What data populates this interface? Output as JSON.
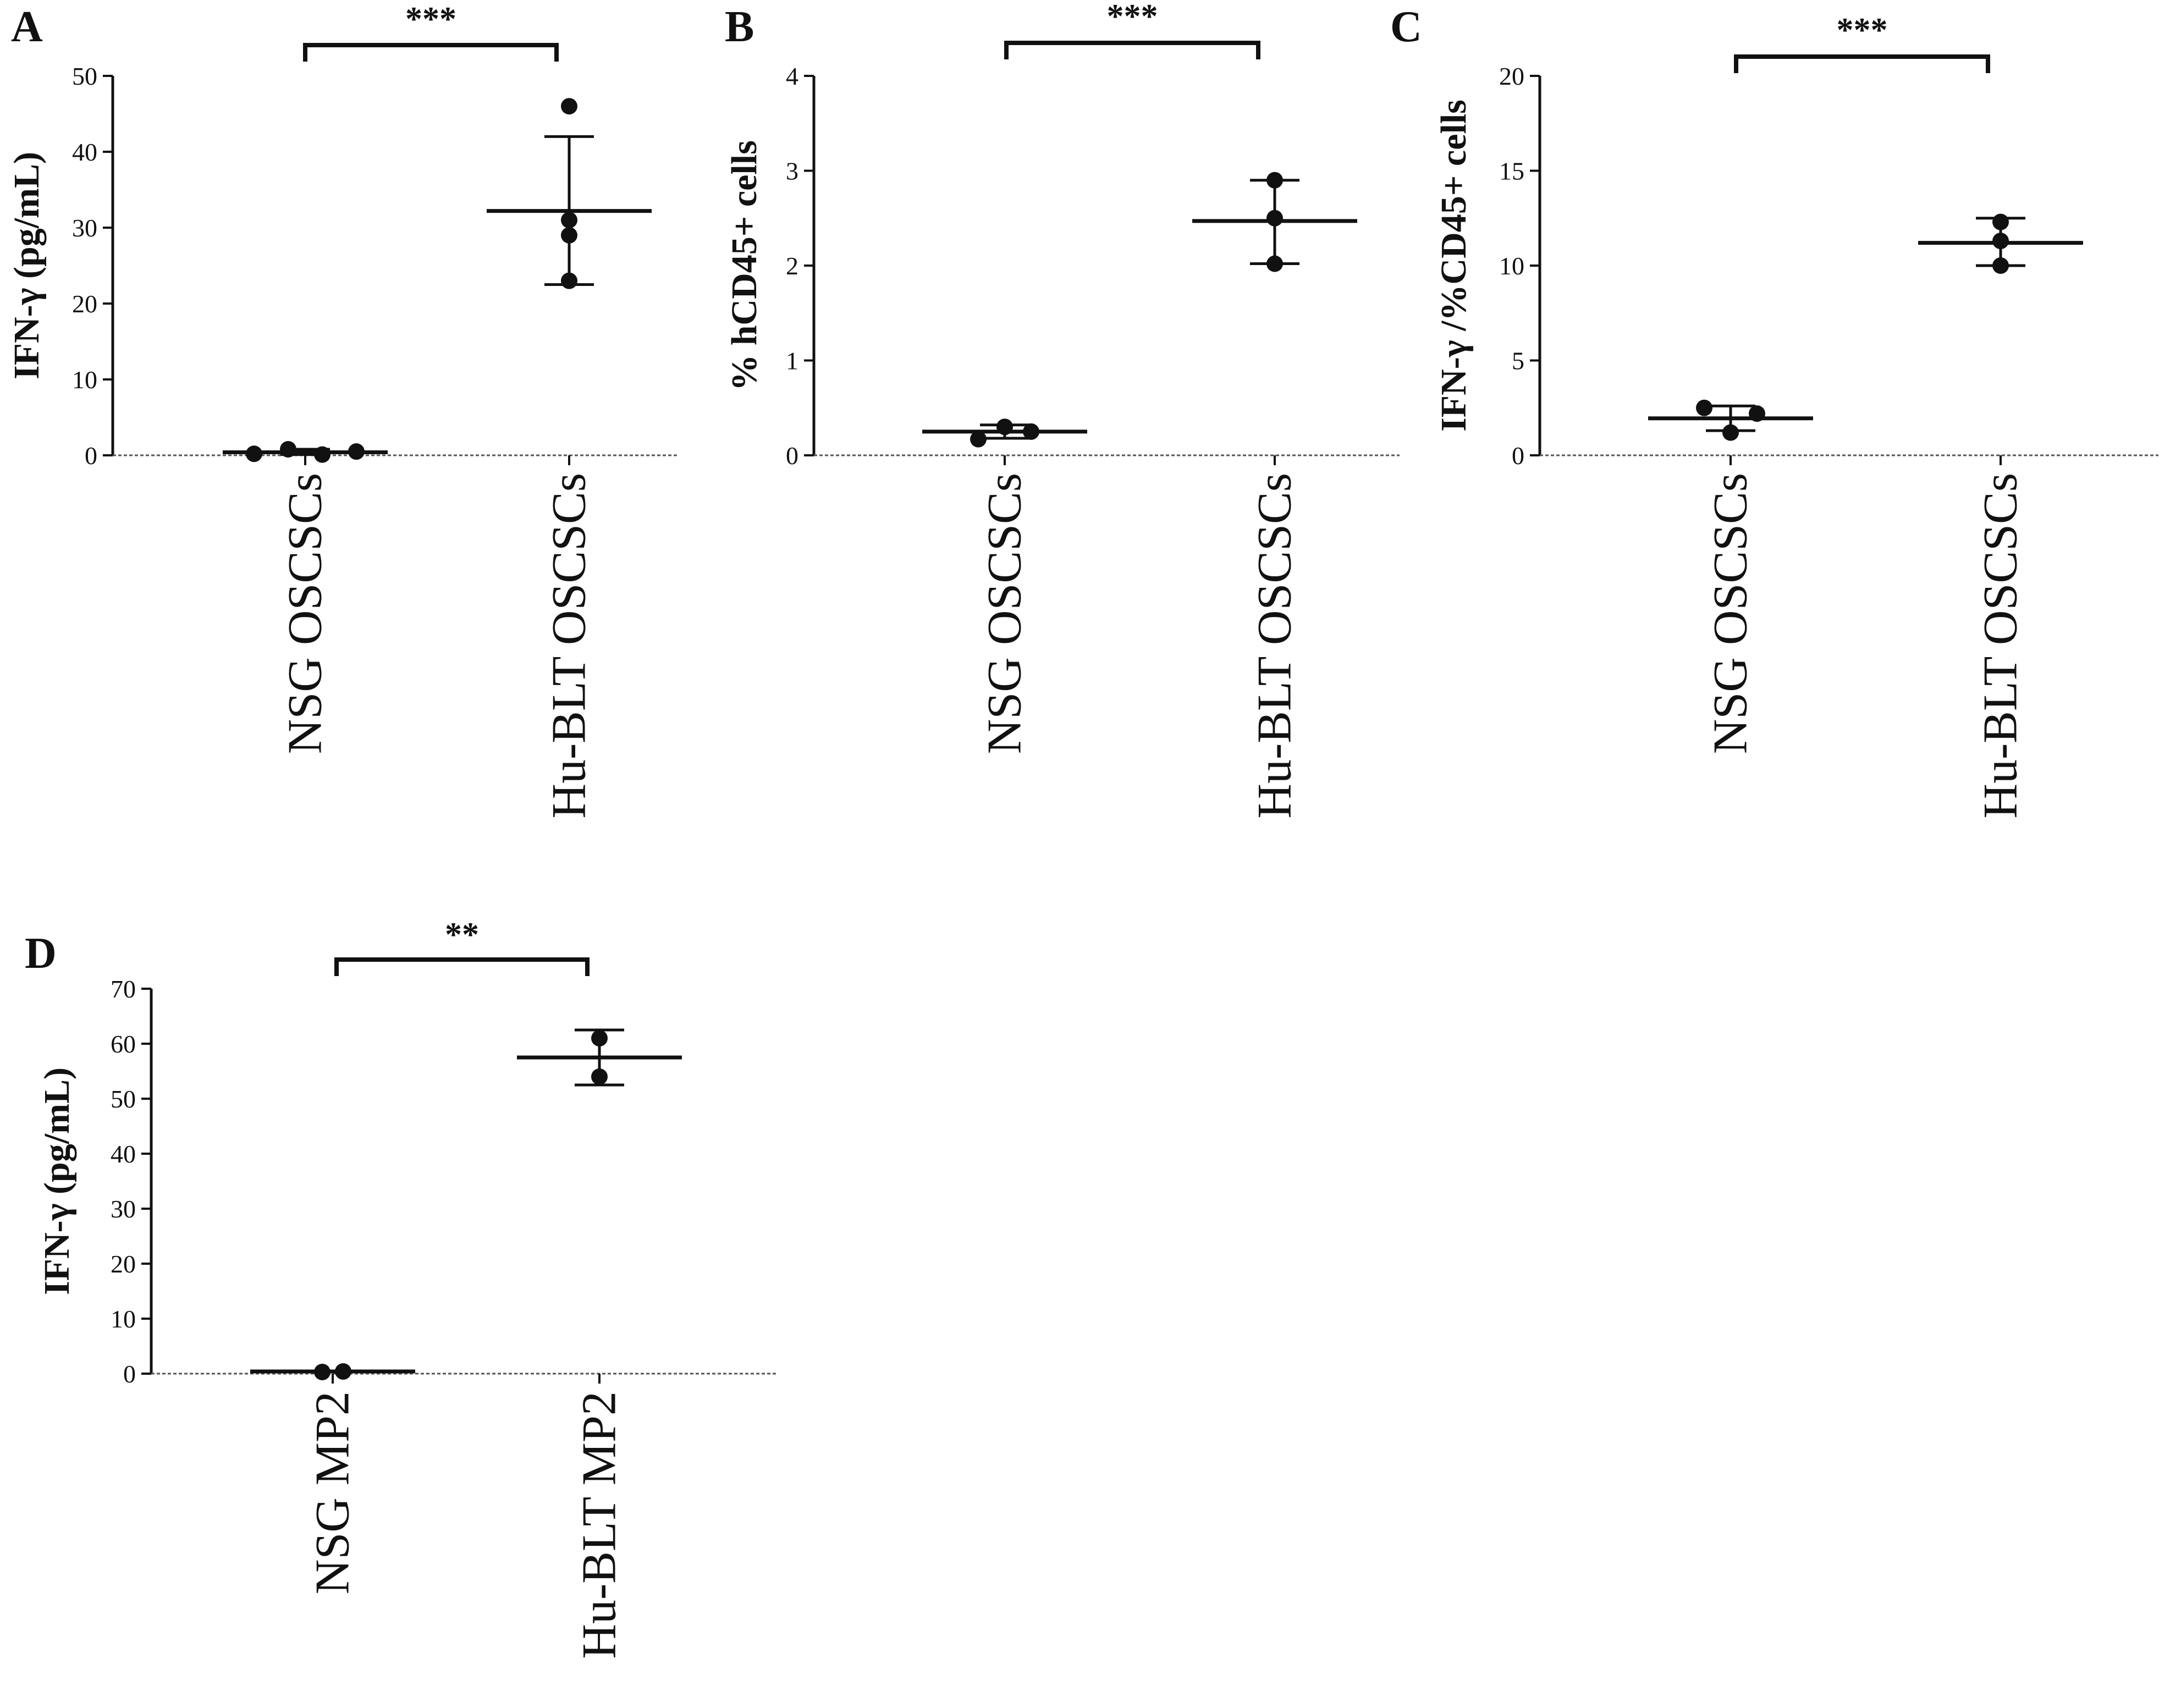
{
  "chart_data": [
    {
      "panel": "A",
      "type": "scatter",
      "ylabel": "IFN-γ (pg/mL)",
      "ylim": [
        0,
        50
      ],
      "yticks": [
        0,
        10,
        20,
        30,
        40,
        50
      ],
      "categories": [
        "NSG OSCSCs",
        "Hu-BLT OSCSCs"
      ],
      "groups": [
        {
          "points": [
            0.2,
            0.8,
            0.1,
            0.5
          ],
          "mean": 0.4,
          "err_low": 0.1,
          "err_high": 0.8
        },
        {
          "points": [
            46,
            31,
            29,
            23
          ],
          "mean": 32.2,
          "err_low": 22.5,
          "err_high": 42
        }
      ],
      "significance": "***"
    },
    {
      "panel": "B",
      "type": "scatter",
      "ylabel": "% hCD45+ cells",
      "ylim": [
        0,
        4
      ],
      "yticks": [
        0,
        1,
        2,
        3,
        4
      ],
      "categories": [
        "NSG OSCSCs",
        "Hu-BLT OSCSCs"
      ],
      "groups": [
        {
          "points": [
            0.17,
            0.3,
            0.25
          ],
          "mean": 0.25,
          "err_low": 0.18,
          "err_high": 0.32
        },
        {
          "points": [
            2.9,
            2.5,
            2.02
          ],
          "mean": 2.47,
          "err_low": 2.02,
          "err_high": 2.9
        }
      ],
      "significance": "***"
    },
    {
      "panel": "C",
      "type": "scatter",
      "ylabel": "IFN-γ /%CD45+ cells",
      "ylim": [
        0,
        20
      ],
      "yticks": [
        0,
        5,
        10,
        15,
        20
      ],
      "categories": [
        "NSG OSCSCs",
        "Hu-BLT OSCSCs"
      ],
      "groups": [
        {
          "points": [
            2.5,
            1.2,
            2.2
          ],
          "mean": 1.95,
          "err_low": 1.3,
          "err_high": 2.6
        },
        {
          "points": [
            12.3,
            11.3,
            10.0
          ],
          "mean": 11.2,
          "err_low": 10.0,
          "err_high": 12.5
        }
      ],
      "significance": "***"
    },
    {
      "panel": "D",
      "type": "scatter",
      "ylabel": "IFN-γ (pg/mL)",
      "ylim": [
        0,
        70
      ],
      "yticks": [
        0,
        10,
        20,
        30,
        40,
        50,
        60,
        70
      ],
      "categories": [
        "NSG MP2",
        "Hu-BLT MP2"
      ],
      "groups": [
        {
          "points": [
            0.3,
            0.4
          ],
          "mean": 0.4,
          "err_low": 0.3,
          "err_high": 0.5
        },
        {
          "points": [
            61,
            54
          ],
          "mean": 57.5,
          "err_low": 52.5,
          "err_high": 62.5
        }
      ],
      "significance": "**"
    }
  ]
}
